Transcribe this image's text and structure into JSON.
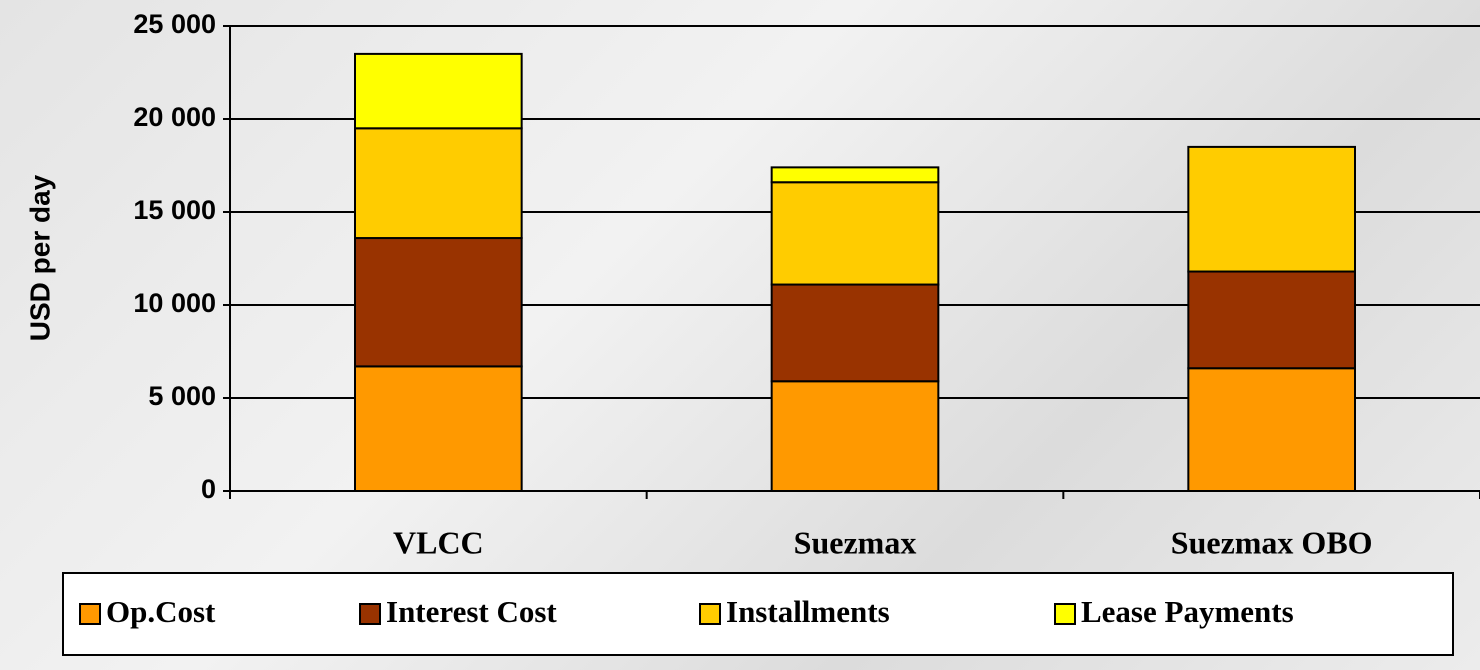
{
  "chart_data": {
    "type": "stacked_bar",
    "y_label": "USD per day",
    "categories": [
      "VLCC",
      "Suezmax",
      "Suezmax OBO"
    ],
    "series": [
      {
        "name": "Op.Cost",
        "color": "#ff9900",
        "values": [
          6700,
          5900,
          6600
        ]
      },
      {
        "name": "Interest Cost",
        "color": "#993300",
        "values": [
          6900,
          5200,
          5200
        ]
      },
      {
        "name": "Installments",
        "color": "#ffcc00",
        "values": [
          5900,
          5500,
          6700
        ]
      },
      {
        "name": "Lease Payments",
        "color": "#ffff00",
        "values": [
          4000,
          800,
          0
        ]
      }
    ],
    "ylim": [
      0,
      25000
    ],
    "yticks": [
      0,
      {
        "value": 5000,
        "label": "5 000"
      },
      {
        "value": 10000,
        "label": "10 000"
      },
      {
        "value": 15000,
        "label": "15 000"
      },
      {
        "value": 20000,
        "label": "20 000"
      },
      {
        "value": 25000,
        "label": "25 000"
      }
    ],
    "grid": true,
    "legend": "bottom"
  }
}
